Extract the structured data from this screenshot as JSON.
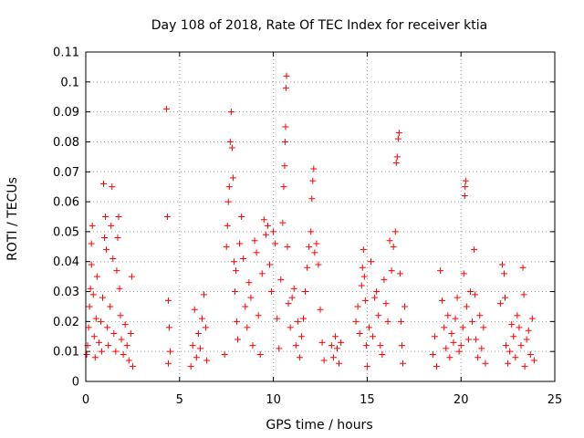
{
  "chart_data": {
    "type": "scatter",
    "title": "Day 108 of 2018, Rate Of TEC Index for receiver ktia",
    "xlabel": "GPS time / hours",
    "ylabel": "ROTI / TECUs",
    "xlim": [
      0,
      25
    ],
    "ylim": [
      0,
      0.11
    ],
    "xticks": [
      0,
      5,
      10,
      15,
      20,
      25
    ],
    "xtick_labels": [
      "0",
      "5",
      "10",
      "15",
      "20",
      "25"
    ],
    "yticks": [
      0,
      0.01,
      0.02,
      0.03,
      0.04,
      0.05,
      0.06,
      0.07,
      0.08,
      0.09,
      0.1,
      0.11
    ],
    "ytick_labels": [
      "0",
      "0.01",
      "0.02",
      "0.03",
      "0.04",
      "0.05",
      "0.06",
      "0.07",
      "0.08",
      "0.09",
      "0.1",
      "0.11"
    ],
    "grid": true,
    "marker": "+",
    "color": "#ff0000",
    "series": [
      {
        "name": "ROTI",
        "points": [
          [
            0.05,
            0.009
          ],
          [
            0.1,
            0.012
          ],
          [
            0.15,
            0.018
          ],
          [
            0.2,
            0.025
          ],
          [
            0.25,
            0.031
          ],
          [
            0.3,
            0.039
          ],
          [
            0.3,
            0.046
          ],
          [
            0.35,
            0.052
          ],
          [
            0.4,
            0.029
          ],
          [
            0.45,
            0.015
          ],
          [
            0.5,
            0.008
          ],
          [
            0.55,
            0.021
          ],
          [
            0.6,
            0.035
          ],
          [
            0.7,
            0.013
          ],
          [
            0.8,
            0.02
          ],
          [
            0.85,
            0.01
          ],
          [
            0.9,
            0.028
          ],
          [
            0.95,
            0.066
          ],
          [
            1.0,
            0.048
          ],
          [
            1.05,
            0.055
          ],
          [
            1.1,
            0.044
          ],
          [
            1.15,
            0.018
          ],
          [
            1.2,
            0.012
          ],
          [
            1.3,
            0.025
          ],
          [
            1.35,
            0.052
          ],
          [
            1.4,
            0.065
          ],
          [
            1.45,
            0.041
          ],
          [
            1.5,
            0.016
          ],
          [
            1.6,
            0.01
          ],
          [
            1.65,
            0.037
          ],
          [
            1.7,
            0.048
          ],
          [
            1.75,
            0.055
          ],
          [
            1.8,
            0.031
          ],
          [
            1.85,
            0.022
          ],
          [
            1.9,
            0.014
          ],
          [
            2.0,
            0.009
          ],
          [
            2.1,
            0.019
          ],
          [
            2.2,
            0.012
          ],
          [
            2.3,
            0.007
          ],
          [
            2.4,
            0.016
          ],
          [
            2.45,
            0.035
          ],
          [
            2.5,
            0.005
          ],
          [
            4.3,
            0.091
          ],
          [
            4.35,
            0.055
          ],
          [
            4.4,
            0.027
          ],
          [
            4.45,
            0.018
          ],
          [
            4.5,
            0.01
          ],
          [
            4.4,
            0.006
          ],
          [
            5.6,
            0.005
          ],
          [
            5.7,
            0.012
          ],
          [
            5.8,
            0.024
          ],
          [
            5.9,
            0.008
          ],
          [
            6.0,
            0.016
          ],
          [
            6.1,
            0.011
          ],
          [
            6.2,
            0.021
          ],
          [
            6.3,
            0.029
          ],
          [
            6.4,
            0.018
          ],
          [
            6.45,
            0.007
          ],
          [
            7.4,
            0.009
          ],
          [
            7.5,
            0.045
          ],
          [
            7.55,
            0.052
          ],
          [
            7.6,
            0.06
          ],
          [
            7.65,
            0.065
          ],
          [
            7.7,
            0.08
          ],
          [
            7.75,
            0.09
          ],
          [
            7.8,
            0.078
          ],
          [
            7.85,
            0.068
          ],
          [
            7.9,
            0.04
          ],
          [
            7.95,
            0.03
          ],
          [
            8.0,
            0.037
          ],
          [
            8.05,
            0.02
          ],
          [
            8.1,
            0.014
          ],
          [
            8.2,
            0.046
          ],
          [
            8.3,
            0.055
          ],
          [
            8.4,
            0.041
          ],
          [
            8.5,
            0.025
          ],
          [
            8.6,
            0.018
          ],
          [
            8.7,
            0.033
          ],
          [
            8.8,
            0.028
          ],
          [
            8.9,
            0.012
          ],
          [
            9.0,
            0.047
          ],
          [
            9.1,
            0.043
          ],
          [
            9.2,
            0.022
          ],
          [
            9.3,
            0.009
          ],
          [
            9.4,
            0.036
          ],
          [
            9.5,
            0.054
          ],
          [
            9.6,
            0.049
          ],
          [
            9.7,
            0.052
          ],
          [
            9.8,
            0.039
          ],
          [
            9.9,
            0.03
          ],
          [
            10.0,
            0.05
          ],
          [
            10.1,
            0.046
          ],
          [
            10.2,
            0.021
          ],
          [
            10.3,
            0.011
          ],
          [
            10.4,
            0.034
          ],
          [
            10.5,
            0.053
          ],
          [
            10.55,
            0.065
          ],
          [
            10.6,
            0.072
          ],
          [
            10.62,
            0.08
          ],
          [
            10.65,
            0.085
          ],
          [
            10.67,
            0.098
          ],
          [
            10.7,
            0.102
          ],
          [
            10.75,
            0.045
          ],
          [
            10.8,
            0.026
          ],
          [
            10.9,
            0.018
          ],
          [
            11.0,
            0.028
          ],
          [
            11.1,
            0.031
          ],
          [
            11.2,
            0.012
          ],
          [
            11.3,
            0.02
          ],
          [
            11.4,
            0.008
          ],
          [
            11.5,
            0.015
          ],
          [
            11.6,
            0.021
          ],
          [
            11.7,
            0.03
          ],
          [
            11.8,
            0.038
          ],
          [
            11.9,
            0.045
          ],
          [
            12.0,
            0.05
          ],
          [
            12.05,
            0.061
          ],
          [
            12.1,
            0.067
          ],
          [
            12.15,
            0.071
          ],
          [
            12.2,
            0.043
          ],
          [
            12.3,
            0.046
          ],
          [
            12.4,
            0.039
          ],
          [
            12.5,
            0.024
          ],
          [
            12.6,
            0.013
          ],
          [
            12.7,
            0.007
          ],
          [
            13.1,
            0.012
          ],
          [
            13.2,
            0.008
          ],
          [
            13.3,
            0.015
          ],
          [
            13.4,
            0.011
          ],
          [
            13.5,
            0.006
          ],
          [
            13.6,
            0.013
          ],
          [
            14.4,
            0.02
          ],
          [
            14.5,
            0.025
          ],
          [
            14.6,
            0.016
          ],
          [
            14.7,
            0.032
          ],
          [
            14.75,
            0.038
          ],
          [
            14.8,
            0.044
          ],
          [
            14.85,
            0.035
          ],
          [
            14.9,
            0.027
          ],
          [
            14.95,
            0.012
          ],
          [
            15.0,
            0.005
          ],
          [
            15.1,
            0.018
          ],
          [
            15.2,
            0.04
          ],
          [
            15.3,
            0.015
          ],
          [
            15.4,
            0.028
          ],
          [
            15.5,
            0.03
          ],
          [
            15.6,
            0.022
          ],
          [
            15.7,
            0.012
          ],
          [
            15.8,
            0.009
          ],
          [
            15.9,
            0.034
          ],
          [
            16.0,
            0.026
          ],
          [
            16.1,
            0.02
          ],
          [
            16.2,
            0.047
          ],
          [
            16.3,
            0.037
          ],
          [
            16.4,
            0.045
          ],
          [
            16.5,
            0.05
          ],
          [
            16.55,
            0.073
          ],
          [
            16.6,
            0.075
          ],
          [
            16.65,
            0.081
          ],
          [
            16.7,
            0.083
          ],
          [
            16.75,
            0.036
          ],
          [
            16.8,
            0.02
          ],
          [
            16.85,
            0.012
          ],
          [
            16.9,
            0.006
          ],
          [
            17.0,
            0.025
          ],
          [
            18.5,
            0.009
          ],
          [
            18.6,
            0.015
          ],
          [
            18.7,
            0.005
          ],
          [
            18.9,
            0.037
          ],
          [
            19.0,
            0.027
          ],
          [
            19.1,
            0.018
          ],
          [
            19.2,
            0.011
          ],
          [
            19.3,
            0.022
          ],
          [
            19.4,
            0.008
          ],
          [
            19.5,
            0.016
          ],
          [
            19.6,
            0.013
          ],
          [
            19.7,
            0.021
          ],
          [
            19.8,
            0.028
          ],
          [
            19.9,
            0.01
          ],
          [
            20.0,
            0.012
          ],
          [
            20.1,
            0.018
          ],
          [
            20.15,
            0.036
          ],
          [
            20.2,
            0.062
          ],
          [
            20.22,
            0.065
          ],
          [
            20.25,
            0.067
          ],
          [
            20.3,
            0.025
          ],
          [
            20.4,
            0.014
          ],
          [
            20.5,
            0.03
          ],
          [
            20.6,
            0.02
          ],
          [
            20.7,
            0.044
          ],
          [
            20.75,
            0.029
          ],
          [
            20.8,
            0.014
          ],
          [
            20.9,
            0.008
          ],
          [
            21.0,
            0.022
          ],
          [
            21.1,
            0.011
          ],
          [
            21.2,
            0.018
          ],
          [
            21.3,
            0.006
          ],
          [
            22.1,
            0.026
          ],
          [
            22.2,
            0.039
          ],
          [
            22.3,
            0.036
          ],
          [
            22.35,
            0.028
          ],
          [
            22.4,
            0.012
          ],
          [
            22.5,
            0.006
          ],
          [
            22.6,
            0.01
          ],
          [
            22.7,
            0.019
          ],
          [
            22.8,
            0.015
          ],
          [
            22.9,
            0.008
          ],
          [
            23.0,
            0.022
          ],
          [
            23.1,
            0.018
          ],
          [
            23.2,
            0.012
          ],
          [
            23.3,
            0.038
          ],
          [
            23.35,
            0.029
          ],
          [
            23.4,
            0.005
          ],
          [
            23.5,
            0.014
          ],
          [
            23.6,
            0.017
          ],
          [
            23.7,
            0.009
          ],
          [
            23.8,
            0.021
          ],
          [
            23.9,
            0.007
          ]
        ]
      }
    ]
  }
}
